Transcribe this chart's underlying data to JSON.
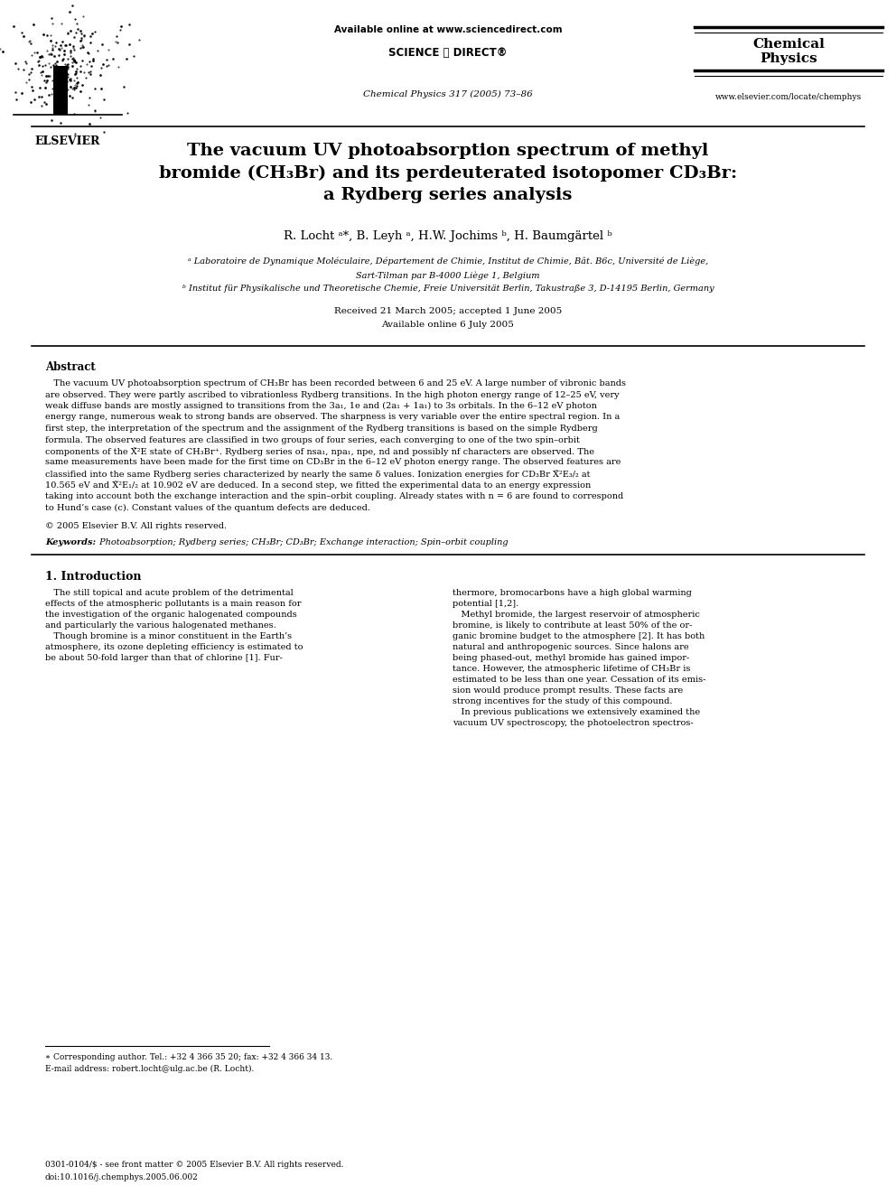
{
  "bg_color": "#ffffff",
  "page_width": 9.92,
  "page_height": 13.23,
  "dpi": 100,
  "header": {
    "available_online": "Available online at www.sciencedirect.com",
    "sciencedirect": "SCIENCE ⓓ DIRECT®",
    "journal_cite": "Chemical Physics 317 (2005) 73–86",
    "journal_name_line1": "Chemical",
    "journal_name_line2": "Physics",
    "journal_url": "www.elsevier.com/locate/chemphys",
    "elsevier_label": "ELSEVIER"
  },
  "title": "The vacuum UV photoabsorption spectrum of methyl\nbromide (CH₃Br) and its perdeuterated isotopomer CD₃Br:\na Rydberg series analysis",
  "authors": "R. Locht ᵃ*, B. Leyh ᵃ, H.W. Jochims ᵇ, H. Baumgärtel ᵇ",
  "affiliation_a": "ᵃ Laboratoire de Dynamique Moléculaire, Département de Chimie, Institut de Chimie, Bât. B6c, Université de Liège,",
  "affiliation_a2": "Sart-Tilman par B-4000 Liège 1, Belgium",
  "affiliation_b": "ᵇ Institut für Physikalische und Theoretische Chemie, Freie Universität Berlin, Takustraße 3, D-14195 Berlin, Germany",
  "received": "Received 21 March 2005; accepted 1 June 2005",
  "available_online_date": "Available online 6 July 2005",
  "abstract_title": "Abstract",
  "abstract_text": "   The vacuum UV photoabsorption spectrum of CH₃Br has been recorded between 6 and 25 eV. A large number of vibronic bands\nare observed. They were partly ascribed to vibrationless Rydberg transitions. In the high photon energy range of 12–25 eV, very\nweak diffuse bands are mostly assigned to transitions from the 3a₁, 1e and (2a₁ + 1a₁) to 3s orbitals. In the 6–12 eV photon\nenergy range, numerous weak to strong bands are observed. The sharpness is very variable over the entire spectral region. In a\nfirst step, the interpretation of the spectrum and the assignment of the Rydberg transitions is based on the simple Rydberg\nformula. The observed features are classified in two groups of four series, each converging to one of the two spin–orbit\ncomponents of the X̃²E state of CH₃Br⁺. Rydberg series of nsa₁, npa₁, npe, nd and possibly nf characters are observed. The\nsame measurements have been made for the first time on CD₃Br in the 6–12 eV photon energy range. The observed features are\nclassified into the same Rydberg series characterized by nearly the same δ values. Ionization energies for CD₃Br X̃²E₃/₂ at\n10.565 eV and X̃²E₁/₂ at 10.902 eV are deduced. In a second step, we fitted the experimental data to an energy expression\ntaking into account both the exchange interaction and the spin–orbit coupling. Already states with n = 6 are found to correspond\nto Hund’s case (c). Constant values of the quantum defects are deduced.",
  "copyright": "© 2005 Elsevier B.V. All rights reserved.",
  "keywords_label": "Keywords:",
  "keywords": " Photoabsorption; Rydberg series; CH₃Br; CD₃Br; Exchange interaction; Spin–orbit coupling",
  "section1_title": "1. Introduction",
  "section1_col1_lines": [
    "   The still topical and acute problem of the detrimental",
    "effects of the atmospheric pollutants is a main reason for",
    "the investigation of the organic halogenated compounds",
    "and particularly the various halogenated methanes.",
    "   Though bromine is a minor constituent in the Earth’s",
    "atmosphere, its ozone depleting efficiency is estimated to",
    "be about 50-fold larger than that of chlorine [1]. Fur-"
  ],
  "section1_col2_lines": [
    "thermore, bromocarbons have a high global warming",
    "potential [1,2].",
    "   Methyl bromide, the largest reservoir of atmospheric",
    "bromine, is likely to contribute at least 50% of the or-",
    "ganic bromine budget to the atmosphere [2]. It has both",
    "natural and anthropogenic sources. Since halons are",
    "being phased-out, methyl bromide has gained impor-",
    "tance. However, the atmospheric lifetime of CH₃Br is",
    "estimated to be less than one year. Cessation of its emis-",
    "sion would produce prompt results. These facts are",
    "strong incentives for the study of this compound.",
    "   In previous publications we extensively examined the",
    "vacuum UV spectroscopy, the photoelectron spectros-"
  ],
  "footnote_star": "∗ Corresponding author. Tel.: +32 4 366 35 20; fax: +32 4 366 34 13.",
  "footnote_email": "E-mail address: robert.locht@ulg.ac.be (R. Locht).",
  "footer_left1": "0301-0104/$ - see front matter © 2005 Elsevier B.V. All rights reserved.",
  "footer_left2": "doi:10.1016/j.chemphys.2005.06.002"
}
